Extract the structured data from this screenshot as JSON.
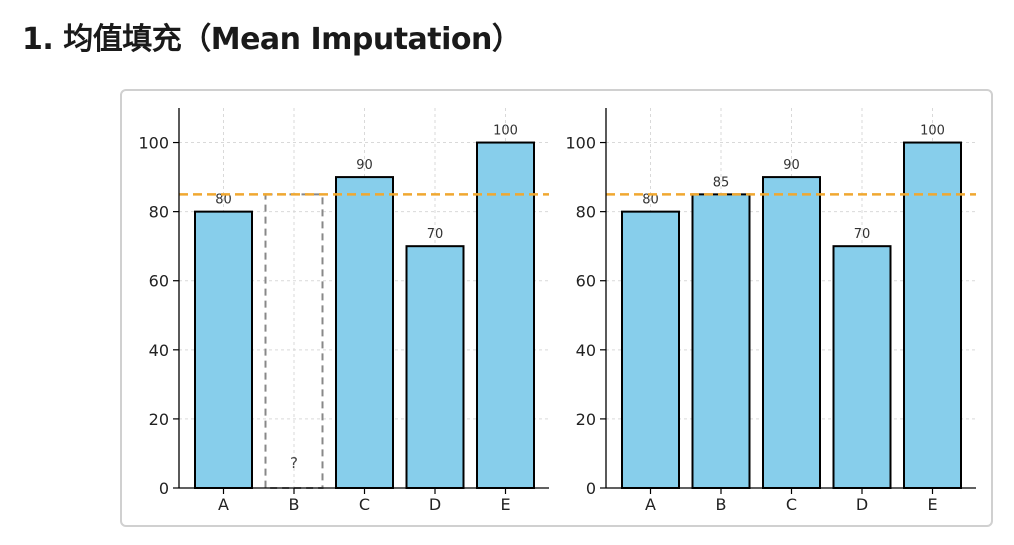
{
  "page": {
    "heading": "1. 均值填充（Mean Imputation）"
  },
  "colors": {
    "bar_fill": "#87ceeb",
    "bar_edge": "#000000",
    "mean_line": "#f0a830",
    "missing_edge": "#888888",
    "grid": "#d9d9d9"
  },
  "chart_data": [
    {
      "type": "bar",
      "categories": [
        "A",
        "B",
        "C",
        "D",
        "E"
      ],
      "values": [
        80,
        null,
        90,
        70,
        100
      ],
      "value_labels": [
        "80",
        "?",
        "90",
        "70",
        "100"
      ],
      "missing_index": 1,
      "missing_label": "?",
      "mean_line": 85,
      "ylim": [
        0,
        110
      ],
      "yticks": [
        0,
        20,
        40,
        60,
        80,
        100
      ],
      "grid": true,
      "title": "",
      "xlabel": "",
      "ylabel": ""
    },
    {
      "type": "bar",
      "categories": [
        "A",
        "B",
        "C",
        "D",
        "E"
      ],
      "values": [
        80,
        85,
        90,
        70,
        100
      ],
      "value_labels": [
        "80",
        "85",
        "90",
        "70",
        "100"
      ],
      "mean_line": 85,
      "ylim": [
        0,
        110
      ],
      "yticks": [
        0,
        20,
        40,
        60,
        80,
        100
      ],
      "grid": true,
      "title": "",
      "xlabel": "",
      "ylabel": ""
    }
  ]
}
